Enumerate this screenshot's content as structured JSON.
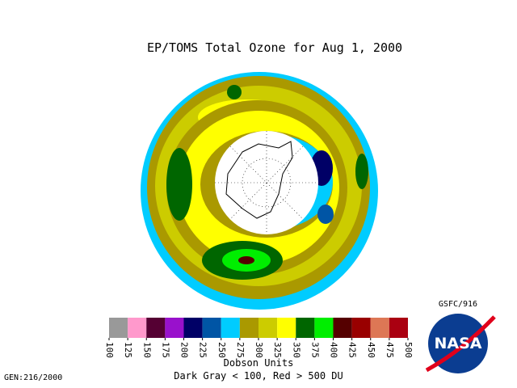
{
  "title": "EP/TOMS Total Ozone for Aug  1, 2000",
  "colorbar": {
    "ticks": [
      100,
      125,
      150,
      175,
      200,
      225,
      250,
      275,
      300,
      325,
      350,
      375,
      400,
      425,
      450,
      475,
      500
    ],
    "colors": [
      "#999999",
      "#ff99cc",
      "#550033",
      "#9911cc",
      "#000066",
      "#0055a5",
      "#00ccff",
      "#aa9900",
      "#cccc00",
      "#ffff00",
      "#006600",
      "#00ee00",
      "#550000",
      "#990000",
      "#dd7755",
      "#aa0011"
    ]
  },
  "units_label": "Dobson Units",
  "note": "Dark Gray < 100, Red > 500 DU",
  "source": "GSFC/916",
  "gen": "GEN:216/2000",
  "logo": "NASA"
}
